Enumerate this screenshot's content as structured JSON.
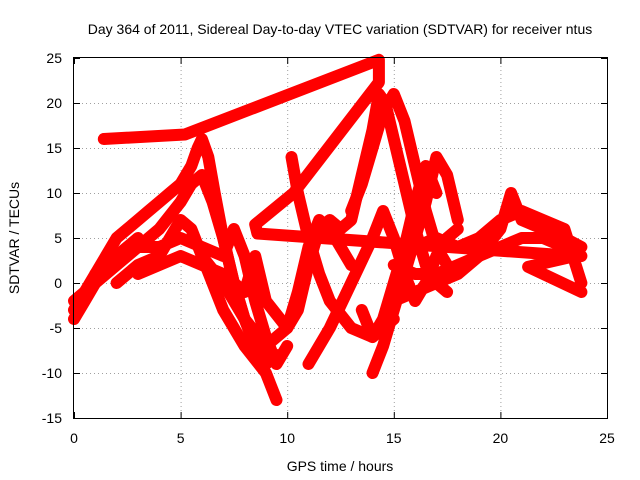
{
  "chart_data": {
    "type": "scatter",
    "title": "Day 364 of 2011, Sidereal Day-to-day VTEC variation (SDTVAR) for receiver ntus",
    "xlabel": "GPS time / hours",
    "ylabel": "SDTVAR / TECUs",
    "xlim": [
      0,
      25
    ],
    "ylim": [
      -15,
      25
    ],
    "xticks": [
      "0",
      "5",
      "10",
      "15",
      "20",
      "25"
    ],
    "yticks": [
      "-15",
      "-10",
      "-5",
      "0",
      "5",
      "10",
      "15",
      "20",
      "25"
    ],
    "grid": true,
    "marker": "+",
    "color": "#ff0000",
    "series": [
      {
        "x": [
          0.0,
          0.5,
          1.0,
          1.5,
          2.0,
          2.5,
          3.0,
          3.5,
          4.0,
          4.5,
          5.0,
          5.5,
          5.8,
          6.0,
          6.3,
          6.6,
          7.0,
          7.5,
          8.0,
          8.5,
          9.0
        ],
        "y": [
          -3,
          -1,
          1,
          3,
          5,
          6,
          7,
          8,
          9,
          10,
          11,
          13,
          15,
          16,
          14,
          10,
          5,
          0,
          -4,
          -7,
          -9
        ]
      },
      {
        "x": [
          0.0,
          1.0,
          2.0,
          3.0,
          4.0,
          5.0,
          5.5,
          6.0,
          6.5,
          7.0,
          7.5,
          8.0,
          8.5,
          9.0,
          9.5
        ],
        "y": [
          -2,
          0,
          2,
          4,
          6,
          9,
          11,
          12,
          9,
          5,
          0,
          -4,
          -7,
          -9,
          -8
        ]
      },
      {
        "x": [
          1.0,
          2.0,
          3.0,
          4.0,
          5.0,
          6.0,
          7.0,
          7.5,
          8.0,
          8.5,
          9.0,
          9.5,
          10.0
        ],
        "y": [
          1,
          3,
          4,
          4,
          5,
          4,
          3,
          6,
          3,
          -2,
          -6,
          -9,
          -7
        ]
      },
      {
        "x": [
          2.0,
          3.0,
          4.0,
          4.5,
          5.0,
          5.5,
          6.0,
          7.0,
          8.0,
          9.0,
          9.5
        ],
        "y": [
          0,
          2,
          3,
          5,
          7,
          6,
          3,
          -3,
          -7,
          -10,
          -13
        ]
      },
      {
        "x": [
          3.0,
          4.0,
          5.0,
          6.0,
          7.0,
          8.0,
          8.5,
          9.0,
          10.0,
          10.5,
          11.0,
          11.5,
          12.0,
          12.5
        ],
        "y": [
          1,
          2,
          3,
          2,
          1,
          -1,
          3,
          -2,
          -5,
          -3,
          2,
          6,
          7,
          6
        ]
      },
      {
        "x": [
          6.0,
          7.0,
          8.0,
          9.0,
          10.0,
          10.5,
          11.0,
          11.5,
          12.0,
          12.5,
          13.0
        ],
        "y": [
          3,
          0,
          -4,
          -7,
          -5,
          -1,
          4,
          7,
          6,
          4,
          2
        ]
      },
      {
        "x": [
          10.2,
          10.5,
          11.0,
          11.5,
          12.0,
          13.0,
          14.0,
          15.0
        ],
        "y": [
          14,
          10,
          5,
          1,
          -2,
          -5,
          -6,
          -4
        ]
      },
      {
        "x": [
          11.0,
          12.0,
          13.0,
          14.0,
          14.5,
          15.0,
          15.5,
          16.0,
          16.5,
          17.0,
          17.5,
          18.0
        ],
        "y": [
          -9,
          -5,
          0,
          5,
          8,
          5,
          1,
          -2,
          0,
          3,
          5,
          6
        ]
      },
      {
        "x": [
          12.0,
          13.0,
          13.5,
          14.0,
          14.3,
          14.6,
          15.0,
          15.5,
          16.0,
          16.5,
          17.0,
          17.5
        ],
        "y": [
          5,
          7,
          12,
          17,
          21,
          20,
          16,
          11,
          6,
          2,
          0,
          -1
        ]
      },
      {
        "x": [
          13.0,
          13.5,
          14.0,
          14.5,
          15.0,
          15.5,
          16.0,
          16.5,
          17.0,
          17.5
        ],
        "y": [
          8,
          11,
          15,
          19,
          21,
          18,
          13,
          8,
          4,
          2
        ]
      },
      {
        "x": [
          14.0,
          14.5,
          15.0,
          15.5,
          16.0,
          16.5,
          17.0,
          17.5,
          18.0
        ],
        "y": [
          -10,
          -7,
          -3,
          1,
          5,
          9,
          14,
          12,
          7
        ]
      },
      {
        "x": [
          13.5,
          14.0,
          14.5,
          15.0,
          15.5,
          16.0,
          16.5,
          17.0
        ],
        "y": [
          -3,
          -6,
          -4,
          0,
          4,
          9,
          13,
          10
        ]
      },
      {
        "x": [
          15.0,
          16.0,
          17.0,
          18.0,
          19.0,
          20.0,
          20.5,
          21.0,
          22.0,
          23.0,
          23.8
        ],
        "y": [
          2,
          1,
          1,
          2,
          3,
          6,
          10,
          7,
          6,
          5,
          4
        ]
      },
      {
        "x": [
          15.0,
          16.0,
          17.0,
          18.0,
          19.0,
          20.0,
          21.0,
          22.0,
          23.0,
          23.8
        ],
        "y": [
          -2,
          -1,
          0,
          1,
          3,
          4,
          5,
          5,
          4,
          3
        ]
      },
      {
        "x": [
          16.0,
          17.0,
          18.0,
          19.0,
          20.0,
          21.0,
          22.0,
          23.0,
          23.8
        ],
        "y": [
          4,
          5,
          4,
          5,
          7,
          8,
          7,
          6,
          0
        ]
      },
      {
        "x": [
          0.0,
          0.5,
          1.0,
          1.5,
          2.0,
          2.5,
          3.0
        ],
        "y": [
          -4,
          -2,
          0,
          2,
          3,
          4,
          5
        ]
      },
      {
        "x": [
          1.4,
          5.2,
          14.3,
          14.3,
          10.3,
          8.5,
          8.6,
          23.5,
          21.3,
          23.8
        ],
        "y": [
          16,
          16.5,
          24.8,
          22.3,
          10,
          6.5,
          5.5,
          3,
          1.8,
          -1
        ]
      }
    ]
  }
}
